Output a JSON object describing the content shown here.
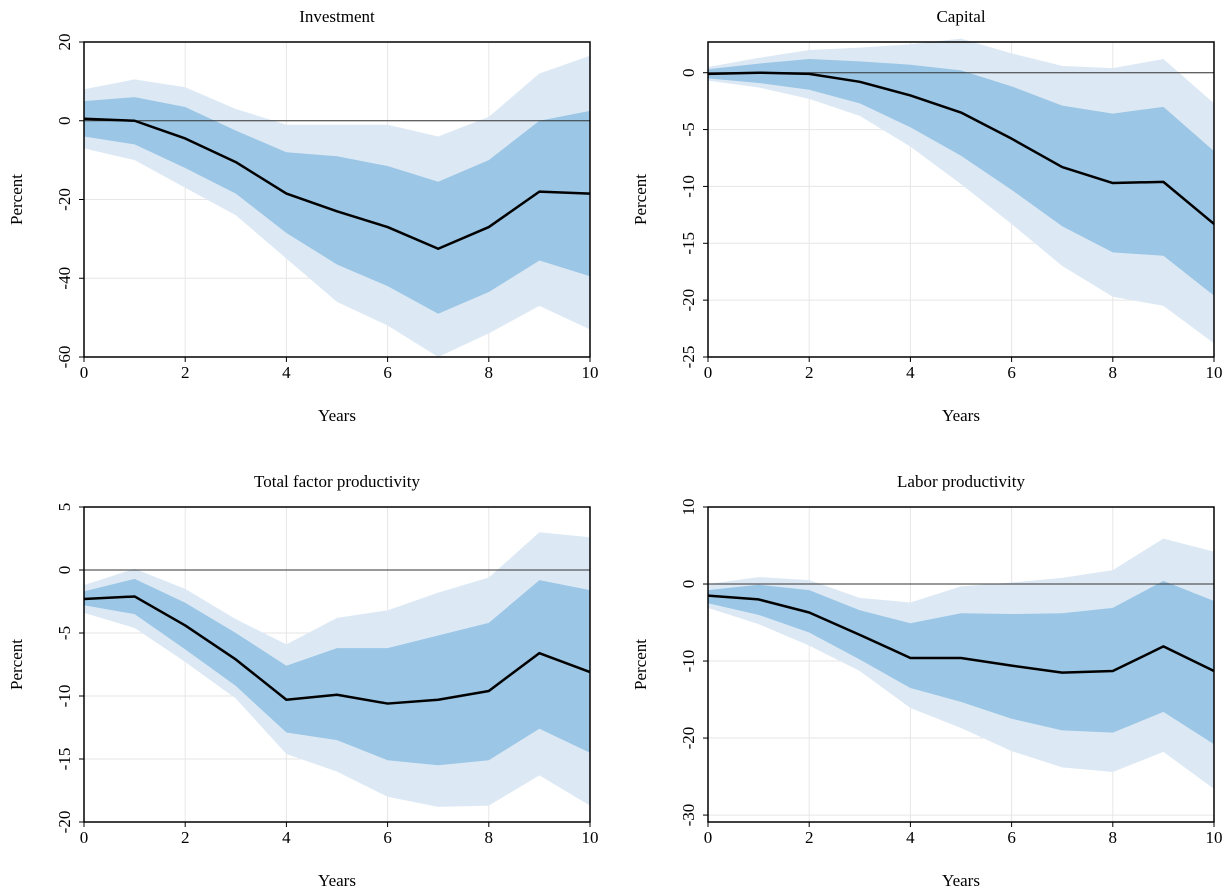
{
  "chart_data": [
    {
      "type": "line",
      "title": "Investment",
      "xlabel": "Years",
      "ylabel": "Percent",
      "x": [
        0,
        1,
        2,
        3,
        4,
        5,
        6,
        7,
        8,
        9,
        10
      ],
      "xlim": [
        0,
        10
      ],
      "xticks": [
        0,
        2,
        4,
        6,
        8,
        10
      ],
      "ylim": [
        -60,
        20
      ],
      "yticks": [
        -60,
        -40,
        -20,
        0,
        20
      ],
      "grid": true,
      "reference_line": 0,
      "bands": [
        {
          "color": "#dce9f5",
          "upper": [
            8,
            10.5,
            8.5,
            3,
            -1,
            -1,
            -1,
            -4,
            1,
            12,
            16.5
          ],
          "lower": [
            -7,
            -10,
            -17,
            -24,
            -35,
            -46,
            -52,
            -60,
            -54,
            -47,
            -53
          ]
        },
        {
          "color": "#9bc6e5",
          "upper": [
            5,
            6,
            3.5,
            -2.5,
            -8,
            -9,
            -11.5,
            -15.5,
            -10,
            0,
            2.5
          ],
          "lower": [
            -4,
            -6,
            -12,
            -18.5,
            -28.5,
            -36.5,
            -42,
            -49,
            -43.5,
            -35.5,
            -39.5
          ]
        }
      ],
      "line": {
        "color": "#000000",
        "values": [
          0.5,
          0,
          -4.5,
          -10.5,
          -18.5,
          -23,
          -27,
          -32.5,
          -27,
          -18,
          -18.5
        ]
      }
    },
    {
      "type": "line",
      "title": "Capital",
      "xlabel": "Years",
      "ylabel": "Percent",
      "x": [
        0,
        1,
        2,
        3,
        4,
        5,
        6,
        7,
        8,
        9,
        10
      ],
      "xlim": [
        0,
        10
      ],
      "xticks": [
        0,
        2,
        4,
        6,
        8,
        10
      ],
      "ylim": [
        -25,
        2.7
      ],
      "yticks": [
        -25,
        -20,
        -15,
        -10,
        -5,
        0
      ],
      "grid": true,
      "reference_line": 0,
      "bands": [
        {
          "color": "#dce9f5",
          "upper": [
            0.5,
            1.3,
            2,
            2.2,
            2.5,
            3,
            1.7,
            0.6,
            0.4,
            1.2,
            -2.7
          ],
          "lower": [
            -0.7,
            -1.3,
            -2.3,
            -3.8,
            -6.5,
            -9.8,
            -13.3,
            -17,
            -19.7,
            -20.5,
            -23.8
          ]
        },
        {
          "color": "#9bc6e5",
          "upper": [
            0.3,
            0.8,
            1.2,
            1,
            0.7,
            0.2,
            -1.2,
            -2.9,
            -3.6,
            -3,
            -6.9
          ],
          "lower": [
            -0.5,
            -0.9,
            -1.5,
            -2.7,
            -4.8,
            -7.3,
            -10.3,
            -13.5,
            -15.8,
            -16.1,
            -19.6
          ]
        }
      ],
      "line": {
        "color": "#000000",
        "values": [
          -0.1,
          0,
          -0.1,
          -0.8,
          -2,
          -3.5,
          -5.8,
          -8.3,
          -9.7,
          -9.6,
          -13.3
        ]
      }
    },
    {
      "type": "line",
      "title": "Total factor productivity",
      "xlabel": "Years",
      "ylabel": "Percent",
      "x": [
        0,
        1,
        2,
        3,
        4,
        5,
        6,
        7,
        8,
        9,
        10
      ],
      "xlim": [
        0,
        10
      ],
      "xticks": [
        0,
        2,
        4,
        6,
        8,
        10
      ],
      "ylim": [
        -20,
        5
      ],
      "yticks": [
        -20,
        -15,
        -10,
        -5,
        0,
        5
      ],
      "grid": true,
      "reference_line": 0,
      "bands": [
        {
          "color": "#dce9f5",
          "upper": [
            -1.2,
            0.1,
            -1.5,
            -3.9,
            -5.9,
            -3.8,
            -3.2,
            -1.8,
            -0.6,
            3,
            2.6
          ],
          "lower": [
            -3.4,
            -4.6,
            -7.3,
            -10.2,
            -14.6,
            -16,
            -18,
            -18.8,
            -18.7,
            -16.3,
            -18.7
          ]
        },
        {
          "color": "#9bc6e5",
          "upper": [
            -1.7,
            -0.7,
            -2.6,
            -5,
            -7.6,
            -6.2,
            -6.2,
            -5.2,
            -4.2,
            -0.8,
            -1.6
          ],
          "lower": [
            -2.8,
            -3.5,
            -6.3,
            -9.2,
            -12.9,
            -13.5,
            -15.1,
            -15.5,
            -15.1,
            -12.6,
            -14.5
          ]
        }
      ],
      "line": {
        "color": "#000000",
        "values": [
          -2.3,
          -2.1,
          -4.4,
          -7.1,
          -10.3,
          -9.9,
          -10.6,
          -10.3,
          -9.6,
          -6.6,
          -8.1
        ]
      }
    },
    {
      "type": "line",
      "title": "Labor productivity",
      "xlabel": "Years",
      "ylabel": "Percent",
      "x": [
        0,
        1,
        2,
        3,
        4,
        5,
        6,
        7,
        8,
        9,
        10
      ],
      "xlim": [
        0,
        10
      ],
      "xticks": [
        0,
        2,
        4,
        6,
        8,
        10
      ],
      "ylim": [
        -30.9,
        10
      ],
      "yticks": [
        -30,
        -20,
        -10,
        0,
        10
      ],
      "grid": true,
      "reference_line": 0,
      "bands": [
        {
          "color": "#dce9f5",
          "upper": [
            0,
            0.9,
            0.5,
            -1.8,
            -2.4,
            -0.3,
            0.2,
            0.8,
            1.8,
            5.9,
            4.2
          ],
          "lower": [
            -3.1,
            -5.2,
            -8,
            -11.3,
            -16.1,
            -18.7,
            -21.7,
            -23.8,
            -24.4,
            -21.8,
            -26.6
          ]
        },
        {
          "color": "#9bc6e5",
          "upper": [
            -0.8,
            -0.1,
            -0.8,
            -3.4,
            -5.1,
            -3.8,
            -3.9,
            -3.8,
            -3.1,
            0.4,
            -2.2
          ],
          "lower": [
            -2.5,
            -4,
            -6.3,
            -9.8,
            -13.5,
            -15.3,
            -17.5,
            -19,
            -19.3,
            -16.6,
            -20.8
          ]
        }
      ],
      "line": {
        "color": "#000000",
        "values": [
          -1.5,
          -2,
          -3.7,
          -6.6,
          -9.6,
          -9.6,
          -10.6,
          -11.5,
          -11.3,
          -8.1,
          -11.3
        ]
      }
    }
  ]
}
